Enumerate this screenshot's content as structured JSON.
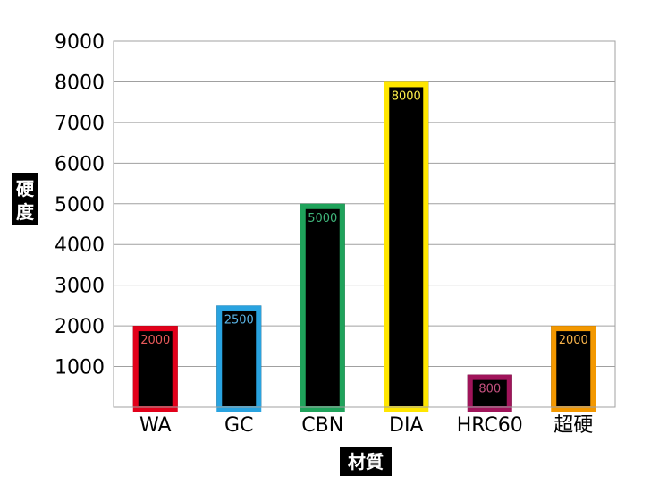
{
  "chart_data": {
    "type": "bar",
    "xlabel": "材質",
    "ylabel": "硬度",
    "ylim": [
      0,
      9000
    ],
    "yticks": [
      1000,
      2000,
      3000,
      4000,
      5000,
      6000,
      7000,
      8000,
      9000
    ],
    "grid": true,
    "legend": "none",
    "categories": [
      "WA",
      "GC",
      "CBN",
      "DIA",
      "HRC60",
      "超硬"
    ],
    "values": [
      2000,
      2500,
      5000,
      8000,
      800,
      2000
    ],
    "data_labels": [
      "2000",
      "2500",
      "5000",
      "8000",
      "800",
      "2000"
    ],
    "bar_fill": "#000000",
    "outline_colors": [
      "#e2001a",
      "#29a3e0",
      "#1fa35b",
      "#ffe600",
      "#a0145a",
      "#f39800"
    ],
    "label_colors": [
      "#e85a5a",
      "#5ab4e6",
      "#3fb57a",
      "#fff04a",
      "#c4507f",
      "#f6b24a"
    ]
  }
}
